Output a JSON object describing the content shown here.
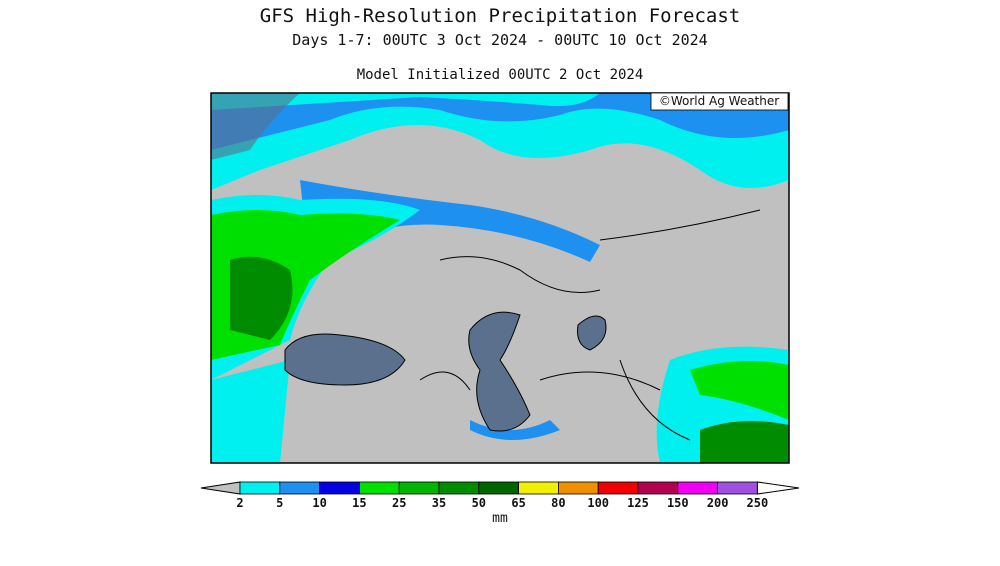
{
  "header": {
    "title": "GFS High-Resolution Precipitation Forecast",
    "subtitle": "Days 1-7: 00UTC 3 Oct 2024 - 00UTC 10 Oct 2024",
    "init": "Model Initialized 00UTC 2 Oct 2024"
  },
  "map": {
    "credit": "©World Ag Weather"
  },
  "legend": {
    "ticks": [
      2,
      5,
      10,
      15,
      25,
      35,
      50,
      65,
      80,
      100,
      125,
      150,
      200,
      250
    ],
    "under_color": "#c0c0c0",
    "over_color": "#ffffff",
    "colors": [
      "#00f0f0",
      "#1e90f0",
      "#0000e0",
      "#00e000",
      "#00b400",
      "#008c00",
      "#006400",
      "#f0f000",
      "#f09000",
      "#f00000",
      "#b40050",
      "#f000f0",
      "#a050e0"
    ],
    "unit": "mm"
  }
}
